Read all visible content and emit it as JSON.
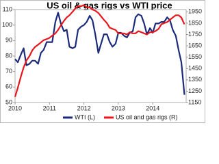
{
  "chart_data": {
    "type": "line",
    "title": "US oil & gas rigs vs WTI price",
    "x": [
      2010.0,
      2010.08,
      2010.17,
      2010.25,
      2010.33,
      2010.42,
      2010.5,
      2010.58,
      2010.67,
      2010.75,
      2010.83,
      2010.92,
      2011.0,
      2011.08,
      2011.17,
      2011.25,
      2011.33,
      2011.42,
      2011.5,
      2011.58,
      2011.67,
      2011.75,
      2011.83,
      2011.92,
      2012.0,
      2012.08,
      2012.17,
      2012.25,
      2012.33,
      2012.42,
      2012.5,
      2012.58,
      2012.67,
      2012.75,
      2012.83,
      2012.92,
      2013.0,
      2013.08,
      2013.17,
      2013.25,
      2013.33,
      2013.42,
      2013.5,
      2013.58,
      2013.67,
      2013.75,
      2013.83,
      2013.92,
      2014.0,
      2014.08,
      2014.17,
      2014.25,
      2014.33,
      2014.42,
      2014.5,
      2014.58,
      2014.67,
      2014.75,
      2014.83,
      2014.92
    ],
    "xlim": [
      2010,
      2014.97
    ],
    "xticks": [
      2010,
      2011,
      2012,
      2013,
      2014
    ],
    "ylim": [
      50,
      110
    ],
    "yticks": [
      50,
      60,
      70,
      80,
      90,
      100,
      110
    ],
    "y2lim": [
      1150,
      1970
    ],
    "y2ticks": [
      1150,
      1250,
      1350,
      1450,
      1550,
      1650,
      1750,
      1850,
      1950
    ],
    "series": [
      {
        "name": "WTI (L)",
        "color": "#1b2a7a",
        "axis": "y",
        "values": [
          78,
          76,
          81,
          85,
          74,
          75,
          77,
          77,
          75,
          82,
          84,
          89,
          89,
          89,
          102,
          108,
          101,
          96,
          97,
          86,
          85,
          86,
          97,
          99,
          100,
          102,
          106,
          103,
          94,
          82,
          88,
          94,
          94,
          89,
          86,
          88,
          95,
          95,
          93,
          92,
          95,
          96,
          105,
          107,
          106,
          101,
          94,
          98,
          95,
          101,
          101,
          102,
          102,
          105,
          103,
          97,
          93,
          84,
          76,
          55
        ]
      },
      {
        "name": "US oil and gas rigs (R)",
        "color": "#e8161b",
        "axis": "y2",
        "values": [
          1200,
          1280,
          1380,
          1460,
          1520,
          1560,
          1610,
          1640,
          1660,
          1680,
          1700,
          1710,
          1720,
          1740,
          1760,
          1790,
          1830,
          1870,
          1900,
          1920,
          1950,
          1980,
          2000,
          2000,
          2010,
          1990,
          1990,
          1970,
          1960,
          1940,
          1910,
          1880,
          1850,
          1810,
          1800,
          1790,
          1760,
          1760,
          1760,
          1750,
          1770,
          1760,
          1760,
          1780,
          1770,
          1760,
          1750,
          1770,
          1770,
          1780,
          1800,
          1840,
          1850,
          1860,
          1880,
          1900,
          1920,
          1920,
          1900,
          1840
        ]
      }
    ]
  }
}
